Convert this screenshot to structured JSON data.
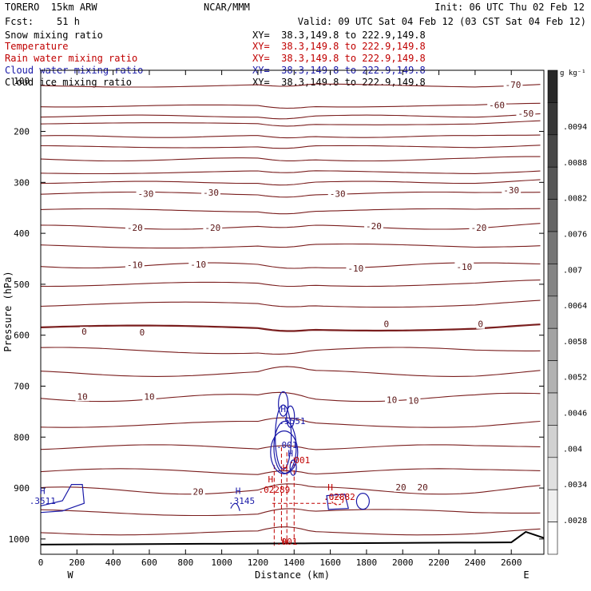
{
  "header": {
    "model": "TORERO  15km ARW",
    "center": "NCAR/MMM",
    "init": "Init: 06 UTC Thu 02 Feb 12",
    "forecast": "Fcst:    51 h",
    "valid": "Valid: 09 UTC Sat 04 Feb 12 (03 CST Sat 04 Feb 12)"
  },
  "legend": [
    {
      "name": "Snow mixing ratio",
      "xy": "XY=  38.3,149.8 to 222.9,149.8",
      "color": "#000000"
    },
    {
      "name": "Temperature",
      "xy": "XY=  38.3,149.8 to 222.9,149.8",
      "color": "#c00000"
    },
    {
      "name": "Rain water mixing ratio",
      "xy": "XY=  38.3,149.8 to 222.9,149.8",
      "color": "#c00000"
    },
    {
      "name": "Cloud water mixing ratio",
      "xy": "XY=  38.3,149.8 to 222.9,149.8",
      "color": "#1a1aa8"
    },
    {
      "name": "Cloud ice mixing ratio",
      "xy": "XY=  38.3,149.8 to 222.9,149.8",
      "color": "#000000"
    }
  ],
  "chart_data": {
    "type": "cross-section contour",
    "xlabel": "Distance (km)",
    "ylabel": "Pressure (hPa)",
    "xlim": [
      0,
      2780
    ],
    "ylim": [
      1030,
      80
    ],
    "xticks": [
      0,
      200,
      400,
      600,
      800,
      1000,
      1200,
      1400,
      1600,
      1800,
      2000,
      2200,
      2400,
      2600
    ],
    "yticks": [
      200,
      300,
      400,
      500,
      600,
      700,
      800,
      900,
      1000
    ],
    "top_tick_label": "100",
    "x_endpoints": [
      "W",
      "E"
    ],
    "colorbar": {
      "units": "g kg⁻¹",
      "labels": [
        ".0094",
        ".0088",
        ".0082",
        ".0076",
        ".007",
        ".0064",
        ".0058",
        ".0052",
        ".0046",
        ".004",
        ".0034",
        ".0028"
      ]
    },
    "isotherm_labels": [
      {
        "text": "-70",
        "x": 2610,
        "p": 108
      },
      {
        "text": "-60",
        "x": 2520,
        "p": 148
      },
      {
        "text": "-50",
        "x": 2680,
        "p": 165
      },
      {
        "text": "-30",
        "x": 580,
        "p": 322
      },
      {
        "text": "-30",
        "x": 940,
        "p": 320
      },
      {
        "text": "-30",
        "x": 1640,
        "p": 322
      },
      {
        "text": "-30",
        "x": 2600,
        "p": 315
      },
      {
        "text": "-20",
        "x": 520,
        "p": 389
      },
      {
        "text": "-20",
        "x": 950,
        "p": 389
      },
      {
        "text": "-20",
        "x": 1840,
        "p": 386
      },
      {
        "text": "-20",
        "x": 2420,
        "p": 389
      },
      {
        "text": "-10",
        "x": 520,
        "p": 462
      },
      {
        "text": "-10",
        "x": 870,
        "p": 461
      },
      {
        "text": "-10",
        "x": 1740,
        "p": 469
      },
      {
        "text": "-10",
        "x": 2340,
        "p": 466
      },
      {
        "text": "0",
        "x": 240,
        "p": 593
      },
      {
        "text": "0",
        "x": 560,
        "p": 594
      },
      {
        "text": "0",
        "x": 1910,
        "p": 578
      },
      {
        "text": "0",
        "x": 2430,
        "p": 578
      },
      {
        "text": "10",
        "x": 230,
        "p": 720
      },
      {
        "text": "10",
        "x": 600,
        "p": 720
      },
      {
        "text": "10",
        "x": 1940,
        "p": 727
      },
      {
        "text": "10",
        "x": 2060,
        "p": 728
      },
      {
        "text": "20",
        "x": 870,
        "p": 907
      },
      {
        "text": "20",
        "x": 1990,
        "p": 898
      },
      {
        "text": "20",
        "x": 2110,
        "p": 898
      }
    ],
    "max_markers": [
      {
        "label": "H",
        "x": 10,
        "p": 905,
        "color": "#1a1aa8"
      },
      {
        "label": ".3511",
        "x": 10,
        "p": 925,
        "color": "#1a1aa8"
      },
      {
        "label": "H",
        "x": 1090,
        "p": 905,
        "color": "#1a1aa8"
      },
      {
        "label": ".3145",
        "x": 1110,
        "p": 925,
        "color": "#1a1aa8"
      },
      {
        "label": "H",
        "x": 1340,
        "p": 745,
        "color": "#1a1aa8"
      },
      {
        "label": ".5551",
        "x": 1390,
        "p": 768,
        "color": "#1a1aa8"
      },
      {
        "label": "H",
        "x": 1380,
        "p": 832,
        "color": "#1a1aa8"
      },
      {
        "label": ".001",
        "x": 1360,
        "p": 815,
        "color": "#1a1aa8"
      },
      {
        "label": "H",
        "x": 1270,
        "p": 883,
        "color": "#c00000"
      },
      {
        "label": ".02289",
        "x": 1290,
        "p": 903,
        "color": "#c00000"
      },
      {
        "label": "H",
        "x": 1350,
        "p": 860,
        "color": "#c00000"
      },
      {
        "label": ".001",
        "x": 1430,
        "p": 845,
        "color": "#c00000"
      },
      {
        "label": "H",
        "x": 1600,
        "p": 898,
        "color": "#c00000"
      },
      {
        "label": ".02882",
        "x": 1650,
        "p": 917,
        "color": "#c00000"
      },
      {
        "label": "H",
        "x": 1350,
        "p": 1005,
        "color": "#c00000"
      },
      {
        "label": ".001",
        "x": 1360,
        "p": 1005,
        "color": "#c00000"
      }
    ]
  }
}
